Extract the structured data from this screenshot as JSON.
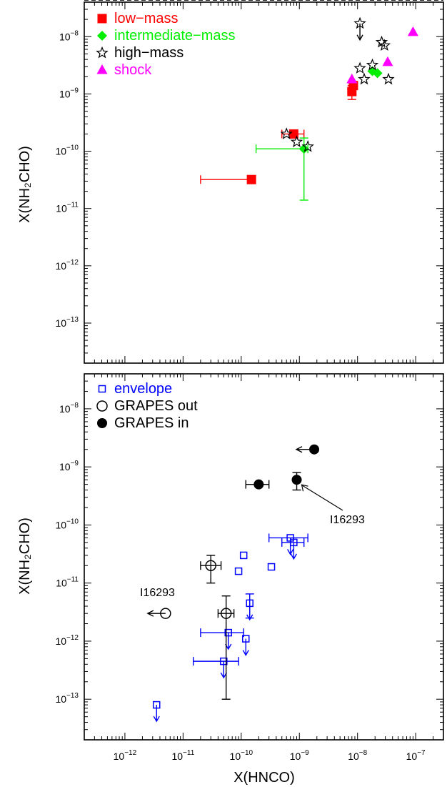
{
  "chart_data": [
    {
      "type": "scatter",
      "panel": "top",
      "xscale": "log",
      "yscale": "log",
      "xlim": [
        2e-13,
        3e-07
      ],
      "ylim": [
        2e-14,
        4e-08
      ],
      "xticks": [
        "10⁻¹²",
        "10⁻¹¹",
        "10⁻¹⁰",
        "10⁻⁹",
        "10⁻⁸",
        "10⁻⁷"
      ],
      "xlabel": "",
      "ylabel": "X(NH₂CHO)",
      "yticklabels": [
        {
          "value": 1e-13,
          "base": "10",
          "exp": "−13"
        },
        {
          "value": 1e-12,
          "base": "10",
          "exp": "−12"
        },
        {
          "value": 1e-11,
          "base": "10",
          "exp": "−11"
        },
        {
          "value": 1e-10,
          "base": "10",
          "exp": "−10"
        },
        {
          "value": 1e-09,
          "base": "10",
          "exp": "−9"
        },
        {
          "value": 1e-08,
          "base": "10",
          "exp": "−8"
        }
      ],
      "legend_position": "top-left",
      "reference_line": {
        "label": "",
        "slope": 1,
        "y_at_x_1e-12": 3e-13
      },
      "series": [
        {
          "name": "low−mass",
          "color": "#ff0000",
          "marker": "filled-square",
          "points": [
            {
              "x": 1.5e-10,
              "y": 3.2e-11,
              "xerr": [
                2e-11,
                1.5e-10
              ]
            },
            {
              "x": 8e-10,
              "y": 2e-10,
              "xerr": [
                5e-10,
                1.2e-09
              ]
            },
            {
              "x": 8e-09,
              "y": 1.1e-09,
              "yerr": [
                8e-10,
                1.4e-09
              ]
            },
            {
              "x": 8.5e-09,
              "y": 1.4e-09
            }
          ]
        },
        {
          "name": "intermediate−mass",
          "color": "#00ee00",
          "marker": "filled-diamond",
          "points": [
            {
              "x": 1.2e-09,
              "y": 1.1e-10,
              "xerr": [
                1.8e-10,
                1.4e-09
              ],
              "yerr": [
                1.4e-11,
                1.7e-10
              ]
            },
            {
              "x": 1.8e-08,
              "y": 2.5e-09
            },
            {
              "x": 2.2e-08,
              "y": 2.3e-09
            }
          ]
        },
        {
          "name": "high−mass",
          "color": "#000000",
          "marker": "open-star",
          "points": [
            {
              "x": 1.1e-08,
              "y": 1.7e-08,
              "upper_limit": true
            },
            {
              "x": 1.1e-08,
              "y": 2.8e-09
            },
            {
              "x": 1.3e-08,
              "y": 1.8e-09
            },
            {
              "x": 1.8e-08,
              "y": 3.2e-09
            },
            {
              "x": 2.6e-08,
              "y": 8e-09
            },
            {
              "x": 2.9e-08,
              "y": 7e-09
            },
            {
              "x": 3.4e-08,
              "y": 1.8e-09
            },
            {
              "x": 6e-10,
              "y": 2e-10
            },
            {
              "x": 9e-10,
              "y": 1.45e-10
            },
            {
              "x": 1.4e-09,
              "y": 1.2e-10
            }
          ]
        },
        {
          "name": "shock",
          "color": "#ff00ff",
          "marker": "filled-triangle",
          "points": [
            {
              "x": 8e-09,
              "y": 1.8e-09
            },
            {
              "x": 3.3e-08,
              "y": 3.6e-09
            },
            {
              "x": 9e-08,
              "y": 1.2e-08
            }
          ]
        }
      ]
    },
    {
      "type": "scatter",
      "panel": "bottom",
      "xscale": "log",
      "yscale": "log",
      "xlim": [
        2e-13,
        3e-07
      ],
      "ylim": [
        2e-14,
        4e-08
      ],
      "xlabel": "X(HNCO)",
      "ylabel": "X(NH₂CHO)",
      "xticklabels": [
        {
          "value": 1e-12,
          "base": "10",
          "exp": "−12"
        },
        {
          "value": 1e-11,
          "base": "10",
          "exp": "−11"
        },
        {
          "value": 1e-10,
          "base": "10",
          "exp": "−10"
        },
        {
          "value": 1e-09,
          "base": "10",
          "exp": "−9"
        },
        {
          "value": 1e-08,
          "base": "10",
          "exp": "−8"
        },
        {
          "value": 1e-07,
          "base": "10",
          "exp": "−7"
        }
      ],
      "yticklabels": [
        {
          "value": 1e-13,
          "base": "10",
          "exp": "−13"
        },
        {
          "value": 1e-12,
          "base": "10",
          "exp": "−12"
        },
        {
          "value": 1e-11,
          "base": "10",
          "exp": "−11"
        },
        {
          "value": 1e-10,
          "base": "10",
          "exp": "−10"
        },
        {
          "value": 1e-09,
          "base": "10",
          "exp": "−9"
        },
        {
          "value": 1e-08,
          "base": "10",
          "exp": "−8"
        }
      ],
      "legend_position": "top-left",
      "reference_line": {
        "label": "",
        "slope": 1,
        "y_at_x_1e-12": 3e-13
      },
      "series": [
        {
          "name": "envelope",
          "color": "#0000ff",
          "marker": "open-square",
          "points": [
            {
              "x": 3.5e-12,
              "y": 8e-14,
              "upper_limit": true
            },
            {
              "x": 5e-11,
              "y": 4.5e-13,
              "xerr": [
                1.5e-11,
                9e-11
              ],
              "upper_limit": true
            },
            {
              "x": 6e-11,
              "y": 1.4e-12,
              "xerr": [
                2e-11,
                1.1e-10
              ],
              "upper_limit": true
            },
            {
              "x": 1.2e-10,
              "y": 1.1e-12,
              "upper_limit": true
            },
            {
              "x": 1.4e-10,
              "y": 4.5e-12,
              "yerr": [
                2.5e-12,
                6.5e-12
              ],
              "upper_limit": true
            },
            {
              "x": 9e-11,
              "y": 1.6e-11
            },
            {
              "x": 1.1e-10,
              "y": 3e-11
            },
            {
              "x": 3.3e-10,
              "y": 1.9e-11
            },
            {
              "x": 7e-10,
              "y": 6e-11,
              "xerr": [
                3e-10,
                1.4e-09
              ],
              "upper_limit": true
            },
            {
              "x": 8e-10,
              "y": 5e-11,
              "xerr": [
                5e-10,
                1.2e-09
              ],
              "upper_limit": true
            }
          ]
        },
        {
          "name": "GRAPES out",
          "color": "#000000",
          "marker": "open-circle",
          "points": [
            {
              "x": 3e-11,
              "y": 2e-11,
              "xerr": [
                2e-11,
                4.5e-11
              ],
              "yerr": [
                1e-11,
                3e-11
              ]
            },
            {
              "x": 5.5e-11,
              "y": 3e-12,
              "xerr": [
                4e-11,
                7.5e-11
              ],
              "yerr": [
                1e-13,
                6e-12
              ]
            },
            {
              "x": 5e-12,
              "y": 3e-12,
              "arrow": "left"
            }
          ]
        },
        {
          "name": "GRAPES in",
          "color": "#000000",
          "marker": "filled-circle",
          "points": [
            {
              "x": 2e-10,
              "y": 5e-10,
              "xerr": [
                1.2e-10,
                3e-10
              ]
            },
            {
              "x": 9e-10,
              "y": 6e-10,
              "yerr": [
                4e-10,
                8e-10
              ]
            },
            {
              "x": 1.8e-09,
              "y": 2e-09,
              "arrow": "left"
            }
          ]
        }
      ],
      "annotations": [
        {
          "text": "I16293",
          "target": {
            "x": 9e-10,
            "y": 6e-10
          }
        },
        {
          "text": "I16293",
          "target": {
            "x": 5e-12,
            "y": 3e-12
          }
        }
      ]
    }
  ]
}
